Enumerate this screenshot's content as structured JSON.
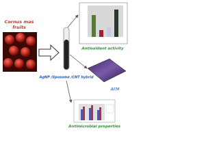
{
  "nodes": [
    {
      "label": "Cornus mas"
    },
    {
      "label": "fruits"
    },
    {
      "label": "AgNP /liposome /CNT hybrid"
    },
    {
      "label": "Antioxidant activity"
    },
    {
      "label": "AFM"
    },
    {
      "label": "Antimicrobial properties"
    }
  ]
}
